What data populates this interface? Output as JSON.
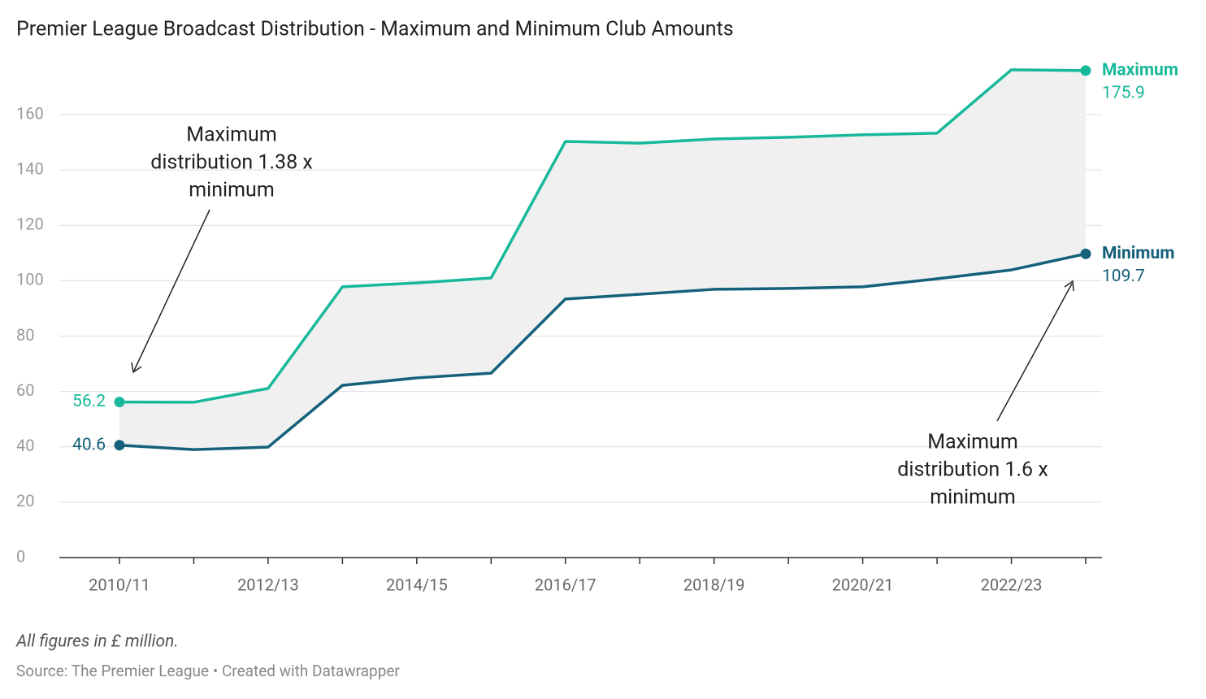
{
  "chart_data": {
    "type": "line",
    "title": "Premier League Broadcast Distribution - Maximum and Minimum Club Amounts",
    "notes": "All figures in £ million.",
    "source": "Source: The Premier League • Created with Datawrapper",
    "categories": [
      "2010/11",
      null,
      "2012/13",
      null,
      "2014/15",
      null,
      "2016/17",
      null,
      "2018/19",
      null,
      "2020/21",
      null,
      "2022/23",
      null
    ],
    "series": [
      {
        "name": "Maximum",
        "color": "#18b99a",
        "values": [
          56.2,
          56.1,
          61.1,
          97.8,
          99.2,
          101,
          150.3,
          149.7,
          151.2,
          151.8,
          152.7,
          153.3,
          176.2,
          175.9
        ]
      },
      {
        "name": "Minimum",
        "color": "#15607a",
        "values": [
          40.6,
          39,
          39.9,
          62.2,
          64.9,
          66.6,
          93.4,
          95.1,
          96.9,
          97.2,
          97.8,
          100.7,
          103.9,
          109.7
        ]
      }
    ],
    "ylim": [
      0,
      180
    ],
    "yticks": [
      0,
      20,
      40,
      60,
      80,
      100,
      120,
      140,
      160
    ],
    "grid": true,
    "annotations": [
      {
        "lines": [
          "Maximum",
          "distribution 1.38 x",
          "minimum"
        ]
      },
      {
        "lines": [
          "Maximum",
          "distribution 1.6 x",
          "minimum"
        ]
      }
    ]
  }
}
